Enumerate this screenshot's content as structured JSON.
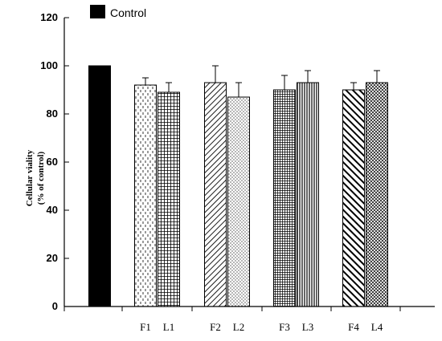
{
  "chart_data": {
    "type": "bar",
    "title": "",
    "xlabel": "",
    "ylabel": [
      "Cellular viality",
      "(% of control)"
    ],
    "ylim": [
      0,
      120
    ],
    "yticks": [
      0,
      20,
      40,
      60,
      80,
      100,
      120
    ],
    "legend": {
      "label": "Control",
      "placement": "top-left"
    },
    "categories": [
      "Control",
      "F1",
      "L1",
      "F2",
      "L2",
      "F3",
      "L3",
      "F4",
      "L4"
    ],
    "tick_labels": [
      "",
      "F1",
      "L1",
      "F2",
      "L2",
      "F3",
      "L3",
      "F4",
      "L4"
    ],
    "values": [
      100,
      92,
      89,
      93,
      87,
      90,
      93,
      90,
      93
    ],
    "error": [
      0,
      3,
      4,
      7,
      6,
      6,
      5,
      3,
      5
    ],
    "patterns": [
      "solid",
      "dashes",
      "grid",
      "diagonal-lines",
      "dots",
      "fine-grid",
      "vertical-lines",
      "thick-diagonal",
      "crosshatch"
    ],
    "grid": false
  }
}
